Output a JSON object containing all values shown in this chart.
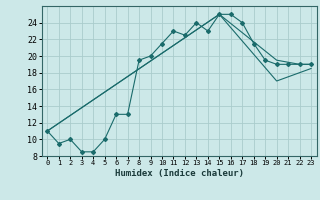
{
  "xlabel": "Humidex (Indice chaleur)",
  "bg_color": "#cce8e8",
  "grid_color": "#aacccc",
  "line_color": "#1a6b6b",
  "xlim": [
    -0.5,
    23.5
  ],
  "ylim": [
    8,
    26
  ],
  "xticks": [
    0,
    1,
    2,
    3,
    4,
    5,
    6,
    7,
    8,
    9,
    10,
    11,
    12,
    13,
    14,
    15,
    16,
    17,
    18,
    19,
    20,
    21,
    22,
    23
  ],
  "yticks": [
    8,
    10,
    12,
    14,
    16,
    18,
    20,
    22,
    24
  ],
  "series1_x": [
    0,
    1,
    2,
    3,
    4,
    5,
    6,
    7,
    8,
    9,
    10,
    11,
    12,
    13,
    14,
    15,
    16,
    17,
    18,
    19,
    20,
    21,
    22,
    23
  ],
  "series1_y": [
    11,
    9.5,
    10,
    8.5,
    8.5,
    10,
    13,
    13,
    19.5,
    20,
    21.5,
    23,
    22.5,
    24,
    23,
    25,
    25,
    24,
    21.5,
    19.5,
    19,
    19,
    19,
    19
  ],
  "series2_x": [
    0,
    15,
    20,
    22,
    23
  ],
  "series2_y": [
    11,
    25,
    19.5,
    19,
    19
  ],
  "series3_x": [
    0,
    15,
    20,
    22,
    23
  ],
  "series3_y": [
    11,
    25,
    17,
    18,
    18.5
  ]
}
